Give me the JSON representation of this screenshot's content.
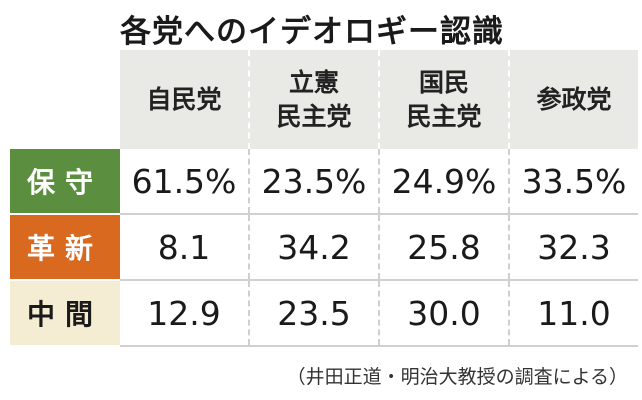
{
  "title": "各党へのイデオロギー認識",
  "columns": [
    {
      "line1": "自民党",
      "line2": ""
    },
    {
      "line1": "立憲",
      "line2": "民主党"
    },
    {
      "line1": "国民",
      "line2": "民主党"
    },
    {
      "line1": "参政党",
      "line2": ""
    }
  ],
  "rows": [
    {
      "label": "保守",
      "values": [
        "61.5%",
        "23.5%",
        "24.9%",
        "33.5%"
      ]
    },
    {
      "label": "革新",
      "values": [
        "8.1",
        "34.2",
        "25.8",
        "32.3"
      ]
    },
    {
      "label": "中間",
      "values": [
        "12.9",
        "23.5",
        "30.0",
        "11.0"
      ]
    }
  ],
  "source": "（井田正道・明治大教授の調査による）",
  "colors": {
    "conservative": "#5b8f3f",
    "reform": "#d9691e",
    "middle": "#f4ecd3",
    "header_bg": "#e9e9e6"
  }
}
